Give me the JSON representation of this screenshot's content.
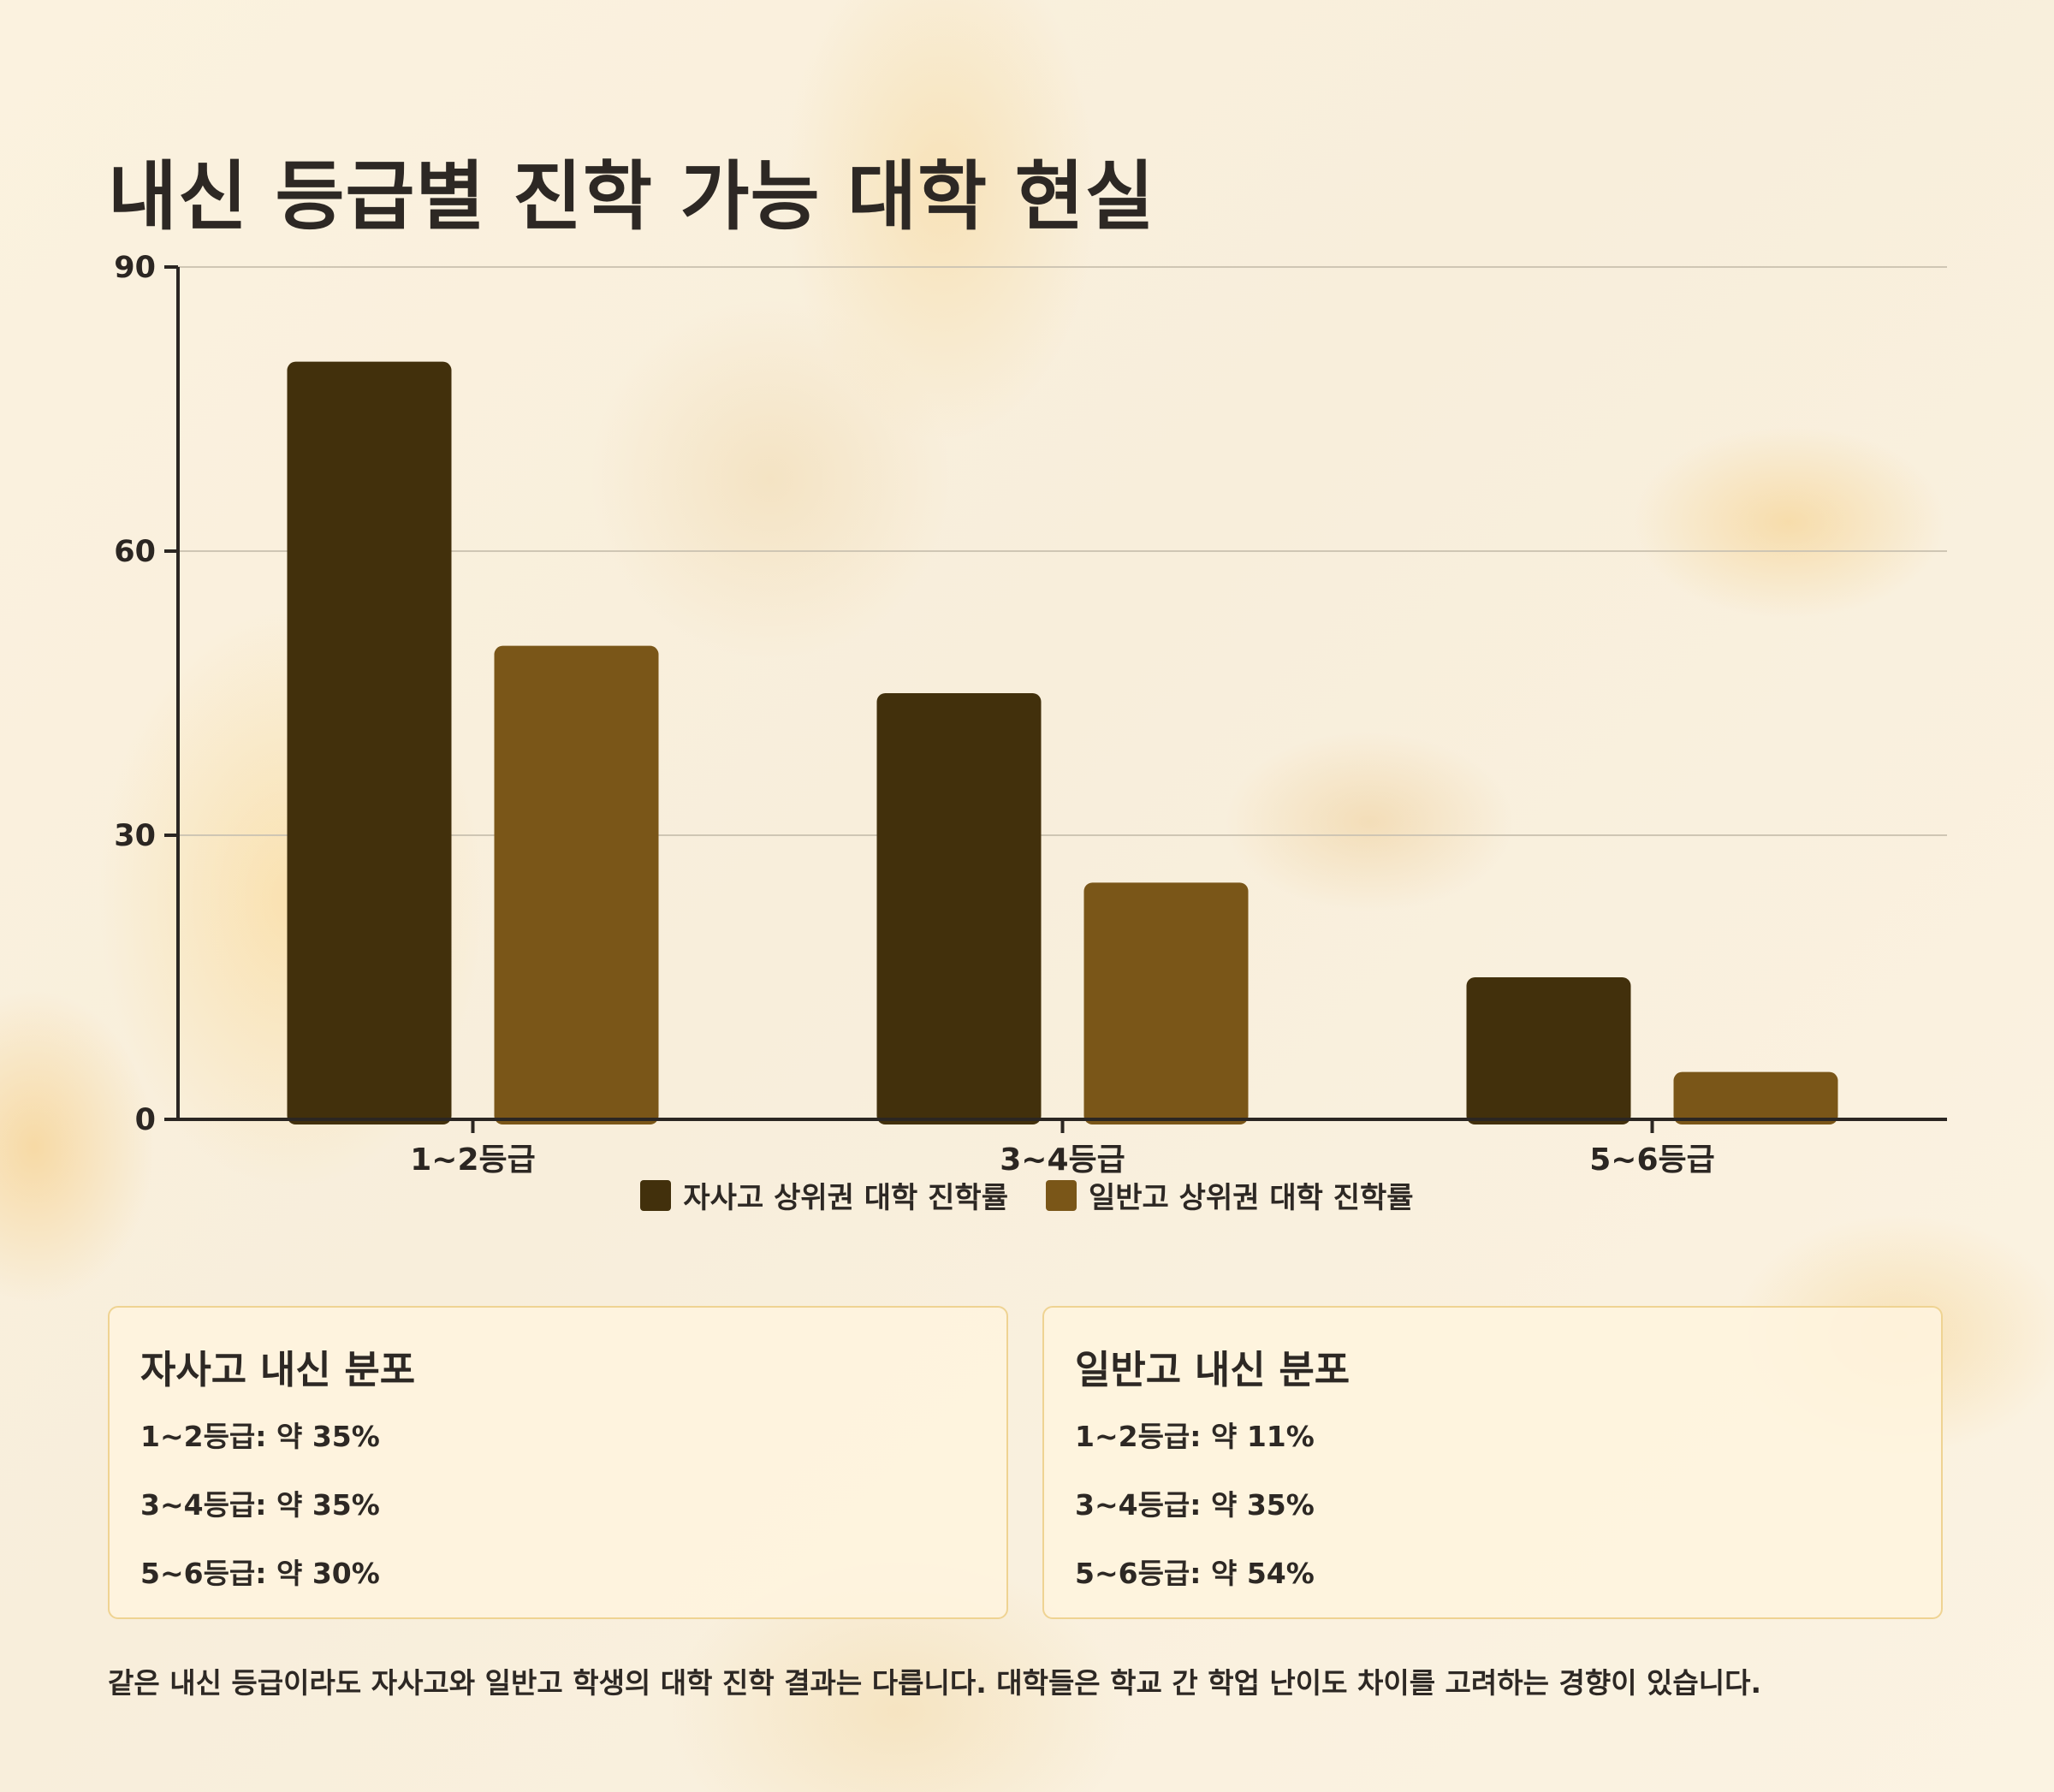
{
  "title": "내신 등급별 진학 가능 대학 현실",
  "chart_data": {
    "type": "bar",
    "categories": [
      "1~2등급",
      "3~4등급",
      "5~6등급"
    ],
    "series": [
      {
        "name": "자사고 상위권 대학 진학률",
        "values": [
          80,
          45,
          15
        ],
        "color": "#42300c"
      },
      {
        "name": "일반고 상위권 대학 진학률",
        "values": [
          50,
          25,
          5
        ],
        "color": "#7a5618"
      }
    ],
    "ylim": [
      0,
      90
    ],
    "yticks": [
      0,
      30,
      60,
      90
    ],
    "grid": true,
    "legend": "bottom"
  },
  "cards": [
    {
      "heading": "자사고 내신 분포",
      "rows": [
        "1~2등급: 약 35%",
        "3~4등급: 약 35%",
        "5~6등급: 약 30%"
      ]
    },
    {
      "heading": "일반고 내신 분포",
      "rows": [
        "1~2등급: 약 11%",
        "3~4등급: 약 35%",
        "5~6등급: 약 54%"
      ]
    }
  ],
  "footnote": "같은 내신 등급이라도 자사고와 일반고 학생의 대학 진학 결과는 다릅니다. 대학들은 학교 간 학업 난이도 차이를 고려하는 경향이 있습니다."
}
